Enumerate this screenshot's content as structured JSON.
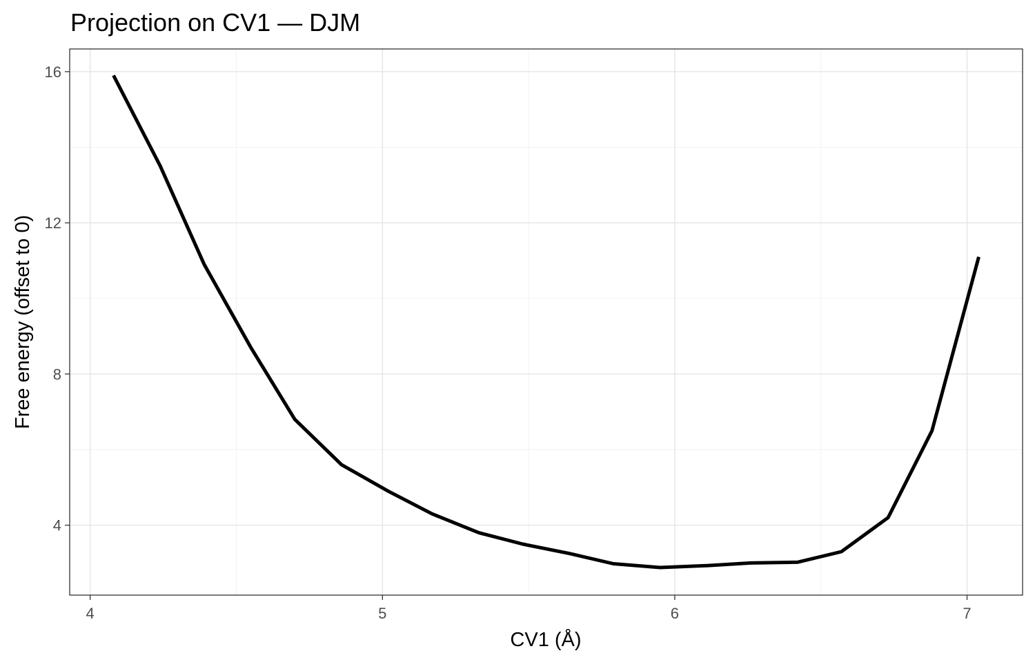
{
  "chart_data": {
    "type": "line",
    "title": "Projection on CV1 — DJM",
    "xlabel": "CV1 (Å)",
    "ylabel": "Free energy (offset to 0)",
    "xlim": [
      3.93,
      7.19
    ],
    "ylim": [
      2.15,
      16.6
    ],
    "x_ticks": [
      4,
      5,
      6,
      7
    ],
    "x_tick_labels": [
      "4",
      "5",
      "6",
      "7"
    ],
    "y_ticks": [
      4,
      8,
      12,
      16
    ],
    "y_tick_labels": [
      "4",
      "8",
      "12",
      "16"
    ],
    "x_minor_ticks": [
      4.5,
      5.5,
      6.5
    ],
    "y_minor_ticks": [
      6,
      10,
      14
    ],
    "grid": true,
    "legend": "none",
    "line_color": "#000000",
    "series": [
      {
        "x": [
          4.08,
          4.24,
          4.39,
          4.55,
          4.7,
          4.86,
          5.02,
          5.17,
          5.33,
          5.48,
          5.64,
          5.79,
          5.95,
          6.11,
          6.26,
          6.42,
          6.57,
          6.73,
          6.88,
          7.04
        ],
        "y": [
          15.9,
          13.5,
          10.9,
          8.7,
          6.8,
          5.6,
          4.9,
          4.3,
          3.8,
          3.5,
          3.25,
          2.98,
          2.88,
          2.93,
          3.0,
          3.02,
          3.3,
          4.2,
          6.5,
          11.1
        ]
      }
    ]
  }
}
